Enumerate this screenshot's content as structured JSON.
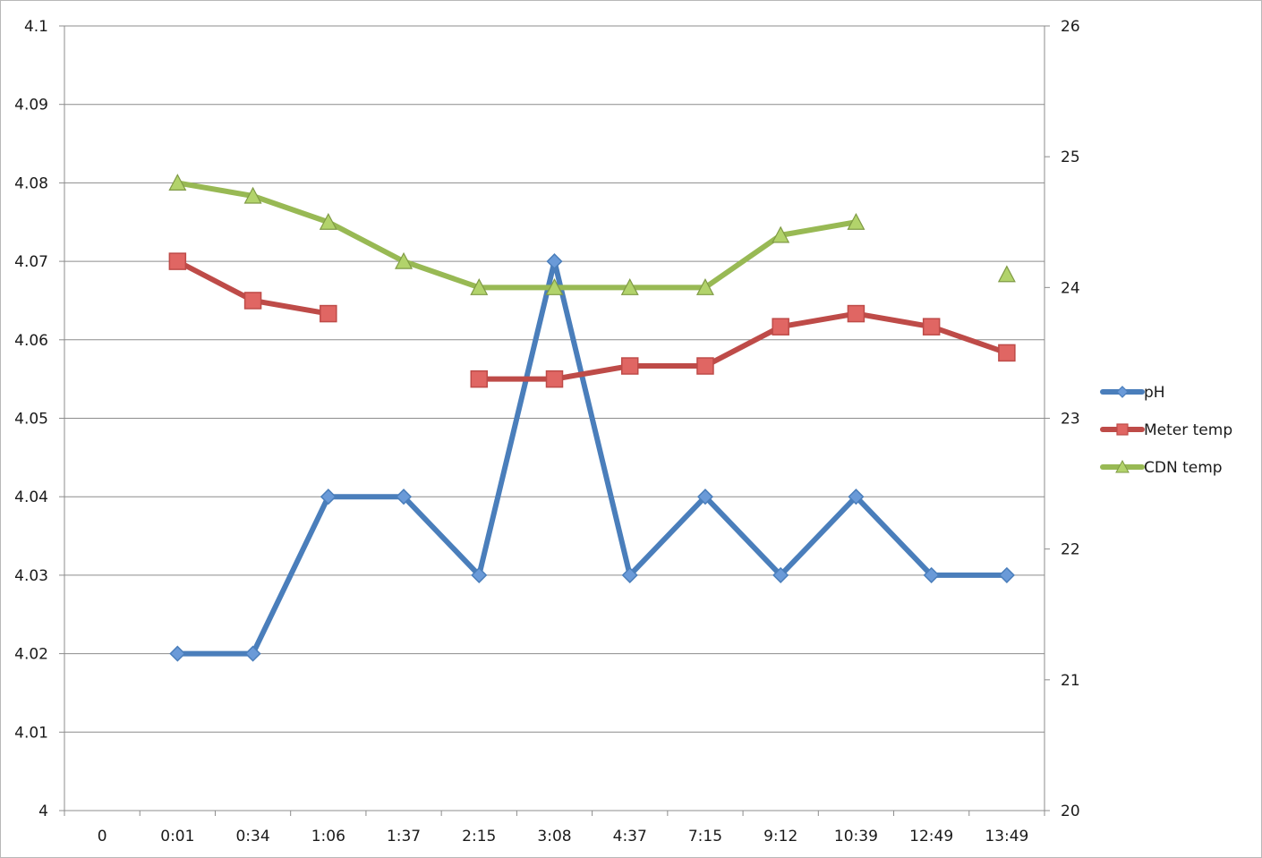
{
  "chart_data": {
    "type": "line",
    "categories": [
      "0",
      "0:01",
      "0:34",
      "1:06",
      "1:37",
      "2:15",
      "3:08",
      "4:37",
      "7:15",
      "9:12",
      "10:39",
      "12:49",
      "13:49"
    ],
    "y_left": {
      "min": 4,
      "max": 4.1,
      "step": 0.01,
      "tick_labels": [
        "4",
        "4.01",
        "4.02",
        "4.03",
        "4.04",
        "4.05",
        "4.06",
        "4.07",
        "4.08",
        "4.09",
        "4.1"
      ]
    },
    "y_right": {
      "min": 20,
      "max": 26,
      "step": 1,
      "tick_labels": [
        "20",
        "21",
        "22",
        "23",
        "24",
        "25",
        "26"
      ]
    },
    "grid": true,
    "legend_position": "right",
    "series": [
      {
        "name": "pH",
        "axis": "left",
        "marker": "diamond",
        "color": "#4a7ebb",
        "marker_fill": "#6a9ad8",
        "values": [
          null,
          4.02,
          4.02,
          4.04,
          4.04,
          4.03,
          4.07,
          4.03,
          4.04,
          4.03,
          4.04,
          4.03,
          4.03
        ]
      },
      {
        "name": "Meter temp",
        "axis": "right",
        "marker": "square",
        "color": "#be4b48",
        "marker_fill": "#e06663",
        "values": [
          null,
          24.2,
          23.9,
          23.8,
          null,
          23.3,
          23.3,
          23.4,
          23.4,
          23.7,
          23.8,
          23.7,
          23.5
        ]
      },
      {
        "name": "CDN temp",
        "axis": "right",
        "marker": "triangle",
        "color": "#98b954",
        "marker_fill": "#b2d36b",
        "values": [
          null,
          24.8,
          24.7,
          24.5,
          24.2,
          24.0,
          24.0,
          24.0,
          24.0,
          24.4,
          24.5,
          null,
          24.1
        ]
      }
    ]
  }
}
